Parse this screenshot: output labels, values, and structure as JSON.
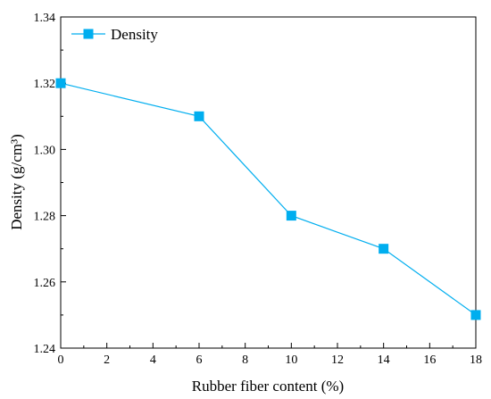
{
  "chart_data": {
    "type": "line",
    "x": [
      0,
      6,
      10,
      14,
      18
    ],
    "series": [
      {
        "name": "Density",
        "values": [
          1.32,
          1.31,
          1.28,
          1.27,
          1.25
        ]
      }
    ],
    "xlabel": "Rubber fiber content (%)",
    "ylabel": "Density (g/cm³)",
    "xlim": [
      0,
      18
    ],
    "ylim": [
      1.24,
      1.34
    ],
    "xticks": [
      0,
      2,
      4,
      6,
      8,
      10,
      12,
      14,
      16,
      18
    ],
    "yticks": [
      1.24,
      1.26,
      1.28,
      1.3,
      1.32,
      1.34
    ],
    "ytick_labels": [
      "1.24",
      "1.26",
      "1.28",
      "1.30",
      "1.32",
      "1.34"
    ],
    "legend_position": "top-left",
    "grid": false,
    "marker": "square",
    "color": "#00aeef"
  }
}
